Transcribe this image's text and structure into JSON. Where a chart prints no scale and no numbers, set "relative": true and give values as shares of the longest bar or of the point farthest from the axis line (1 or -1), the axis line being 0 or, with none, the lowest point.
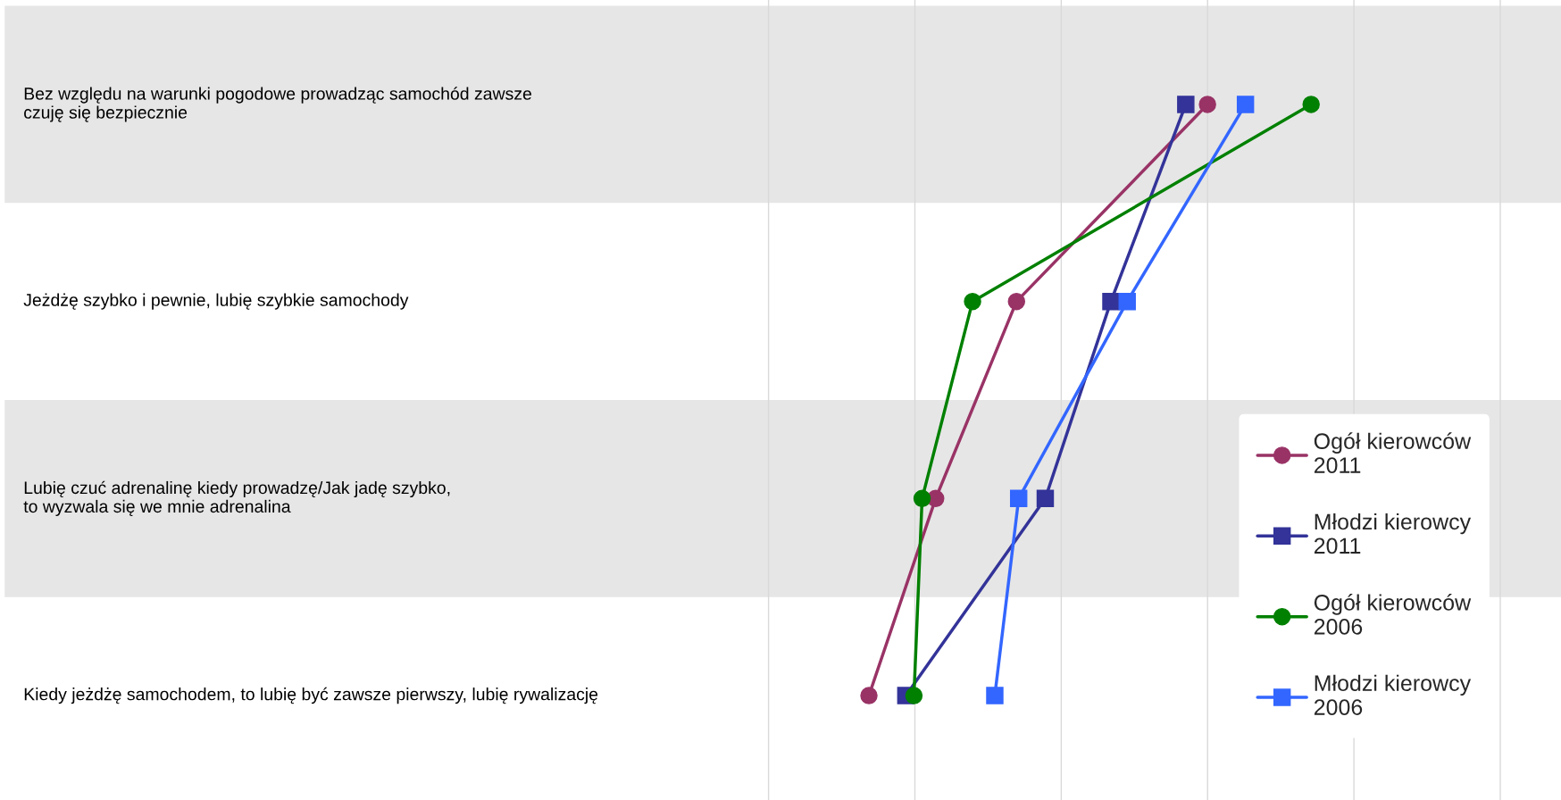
{
  "chart_data": {
    "type": "line",
    "orientation": "horizontal",
    "relative": true,
    "grid": "x",
    "legend": "right",
    "categories": [
      "Bez względu na warunki pogodowe prowadząc samochód zawsze\nczuję się bezpiecznie",
      "Jeżdżę szybko i pewnie, lubię szybkie samochody",
      "Lubię czuć adrenalinę kiedy prowadzę/Jak jadę szybko,\nto wyzwala się we mnie adrenalina",
      "Kiedy jeżdżę samochodem, to lubię być zawsze pierwszy, lubię rywalizację"
    ],
    "series": [
      {
        "name": "Ogół kierowców 2011",
        "color": "#993366",
        "marker": "circle",
        "values": [
          0.809,
          0.457,
          0.308,
          0.185
        ]
      },
      {
        "name": "Młodzi kierowcy 2011",
        "color": "#333399",
        "marker": "square",
        "values": [
          0.769,
          0.631,
          0.51,
          0.253
        ]
      },
      {
        "name": "Ogół kierowców 2006",
        "color": "#008000",
        "marker": "circle",
        "values": [
          1.0,
          0.376,
          0.283,
          0.268
        ]
      },
      {
        "name": "Młodzi kierowcy 2006",
        "color": "#3366ff",
        "marker": "square",
        "values": [
          0.879,
          0.661,
          0.461,
          0.417
        ]
      }
    ]
  }
}
